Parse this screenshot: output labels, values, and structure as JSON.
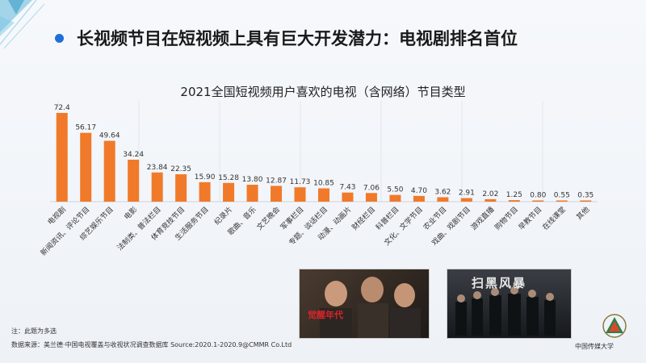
{
  "headline": "长视频节目在短视频上具有巨大开发潜力：电视剧排名首位",
  "chart_data": {
    "type": "bar",
    "title": "2021全国短视频用户喜欢的电视（含网络）节目类型",
    "categories": [
      "电视剧",
      "新闻资讯、评论节目",
      "综艺娱乐节目",
      "电影",
      "法制类、普法栏目",
      "体育竞技节目",
      "生活服务节目",
      "纪录片",
      "歌曲、音乐",
      "文艺晚会",
      "军事栏目",
      "专题、谈话栏目",
      "动漫、动画片",
      "财经栏目",
      "科普栏目",
      "文化、文学节目",
      "农业节目",
      "戏曲、戏剧节目",
      "游戏直播",
      "购物节目",
      "早教节目",
      "在线课堂",
      "其他"
    ],
    "values": [
      72.4,
      56.17,
      49.64,
      34.24,
      23.84,
      22.35,
      15.9,
      15.28,
      13.8,
      12.87,
      11.73,
      10.85,
      7.43,
      7.06,
      5.5,
      4.7,
      3.62,
      2.91,
      2.02,
      1.25,
      0.8,
      0.55,
      0.35
    ],
    "value_labels": [
      "72.4",
      "56.17",
      "49.64",
      "34.24",
      "23.84",
      "22.35",
      "15.90",
      "15.28",
      "13.80",
      "12.87",
      "11.73",
      "10.85",
      "7.43",
      "7.06",
      "5.50",
      "4.70",
      "3.62",
      "2.91",
      "2.02",
      "1.25",
      "0.80",
      "0.55",
      "0.35"
    ],
    "ylim": [
      0,
      80
    ],
    "bar_color": "#f07a2a",
    "grid": true
  },
  "note": "注：此题为多选",
  "source": "数据来源：美兰德·中国电视覆盖与收视状况调查数据库 Source:2020.1-2020.9@CMMR Co.Ltd",
  "poster1_title": "觉醒年代",
  "poster2_title": "扫黑风暴",
  "logo_text": "中国传媒大学",
  "accent_color": "#1f6fd6"
}
